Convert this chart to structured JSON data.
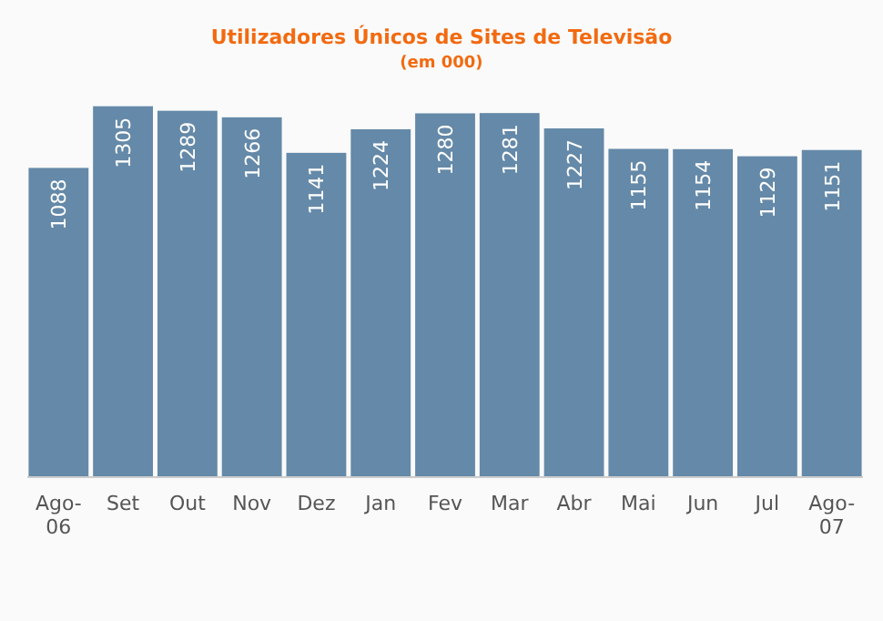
{
  "chart_data": {
    "type": "bar",
    "title": "Utilizadores Únicos de Sites de Televisão",
    "subtitle": "(em 000)",
    "categories": [
      "Ago-06",
      "Set",
      "Out",
      "Nov",
      "Dez",
      "Jan",
      "Fev",
      "Mar",
      "Abr",
      "Mai",
      "Jun",
      "Jul",
      "Ago-07"
    ],
    "values": [
      1088,
      1305,
      1289,
      1266,
      1141,
      1224,
      1280,
      1281,
      1227,
      1155,
      1154,
      1129,
      1151
    ],
    "color": "#6589a8",
    "data_labels": true
  }
}
